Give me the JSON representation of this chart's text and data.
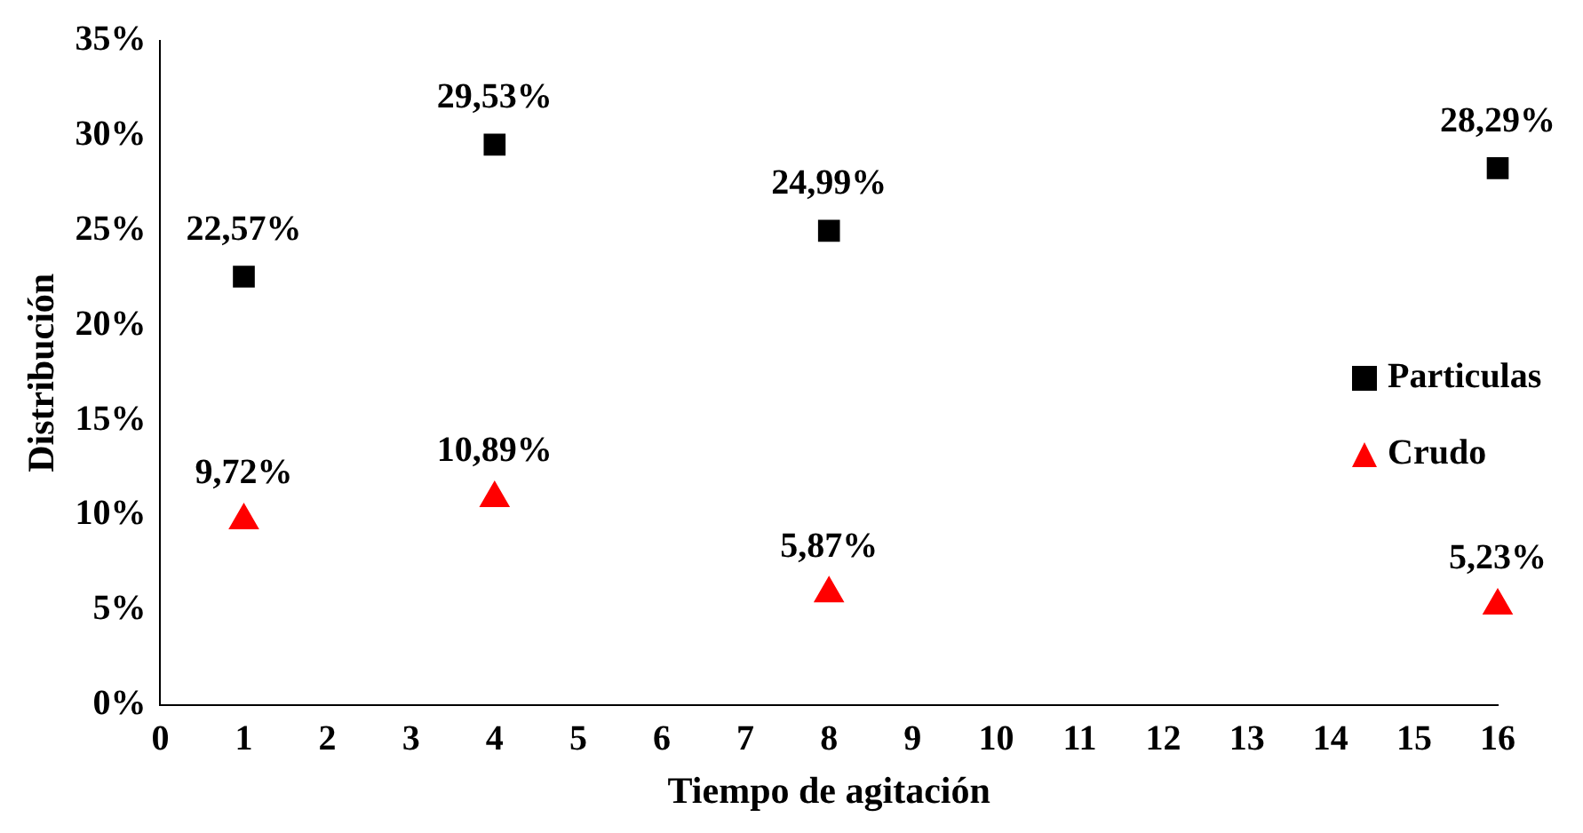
{
  "chart_data": {
    "type": "scatter",
    "xlabel": "Tiempo de agitación",
    "ylabel": "Distribución",
    "x": [
      1,
      4,
      8,
      16
    ],
    "series": [
      {
        "name": "Particulas",
        "color": "#000000",
        "marker": "square",
        "values": [
          22.57,
          29.53,
          24.99,
          28.29
        ],
        "value_labels": [
          "22,57%",
          "29,53%",
          "24,99%",
          "28,29%"
        ]
      },
      {
        "name": "Crudo",
        "color": "#ff0000",
        "marker": "triangle",
        "values": [
          9.72,
          10.89,
          5.87,
          5.23
        ],
        "value_labels": [
          "9,72%",
          "10,89%",
          "5,87%",
          "5,23%"
        ]
      }
    ],
    "xlim": [
      0,
      16
    ],
    "xticks": [
      0,
      1,
      2,
      3,
      4,
      5,
      6,
      7,
      8,
      9,
      10,
      11,
      12,
      13,
      14,
      15,
      16
    ],
    "ylim": [
      0,
      35
    ],
    "yticks": [
      {
        "value": 0,
        "label": "0%"
      },
      {
        "value": 5,
        "label": "5%"
      },
      {
        "value": 10,
        "label": "10%"
      },
      {
        "value": 15,
        "label": "15%"
      },
      {
        "value": 20,
        "label": "20%"
      },
      {
        "value": 25,
        "label": "25%"
      },
      {
        "value": 30,
        "label": "30%"
      },
      {
        "value": 35,
        "label": "35%"
      }
    ],
    "grid": false,
    "legend": "right"
  }
}
